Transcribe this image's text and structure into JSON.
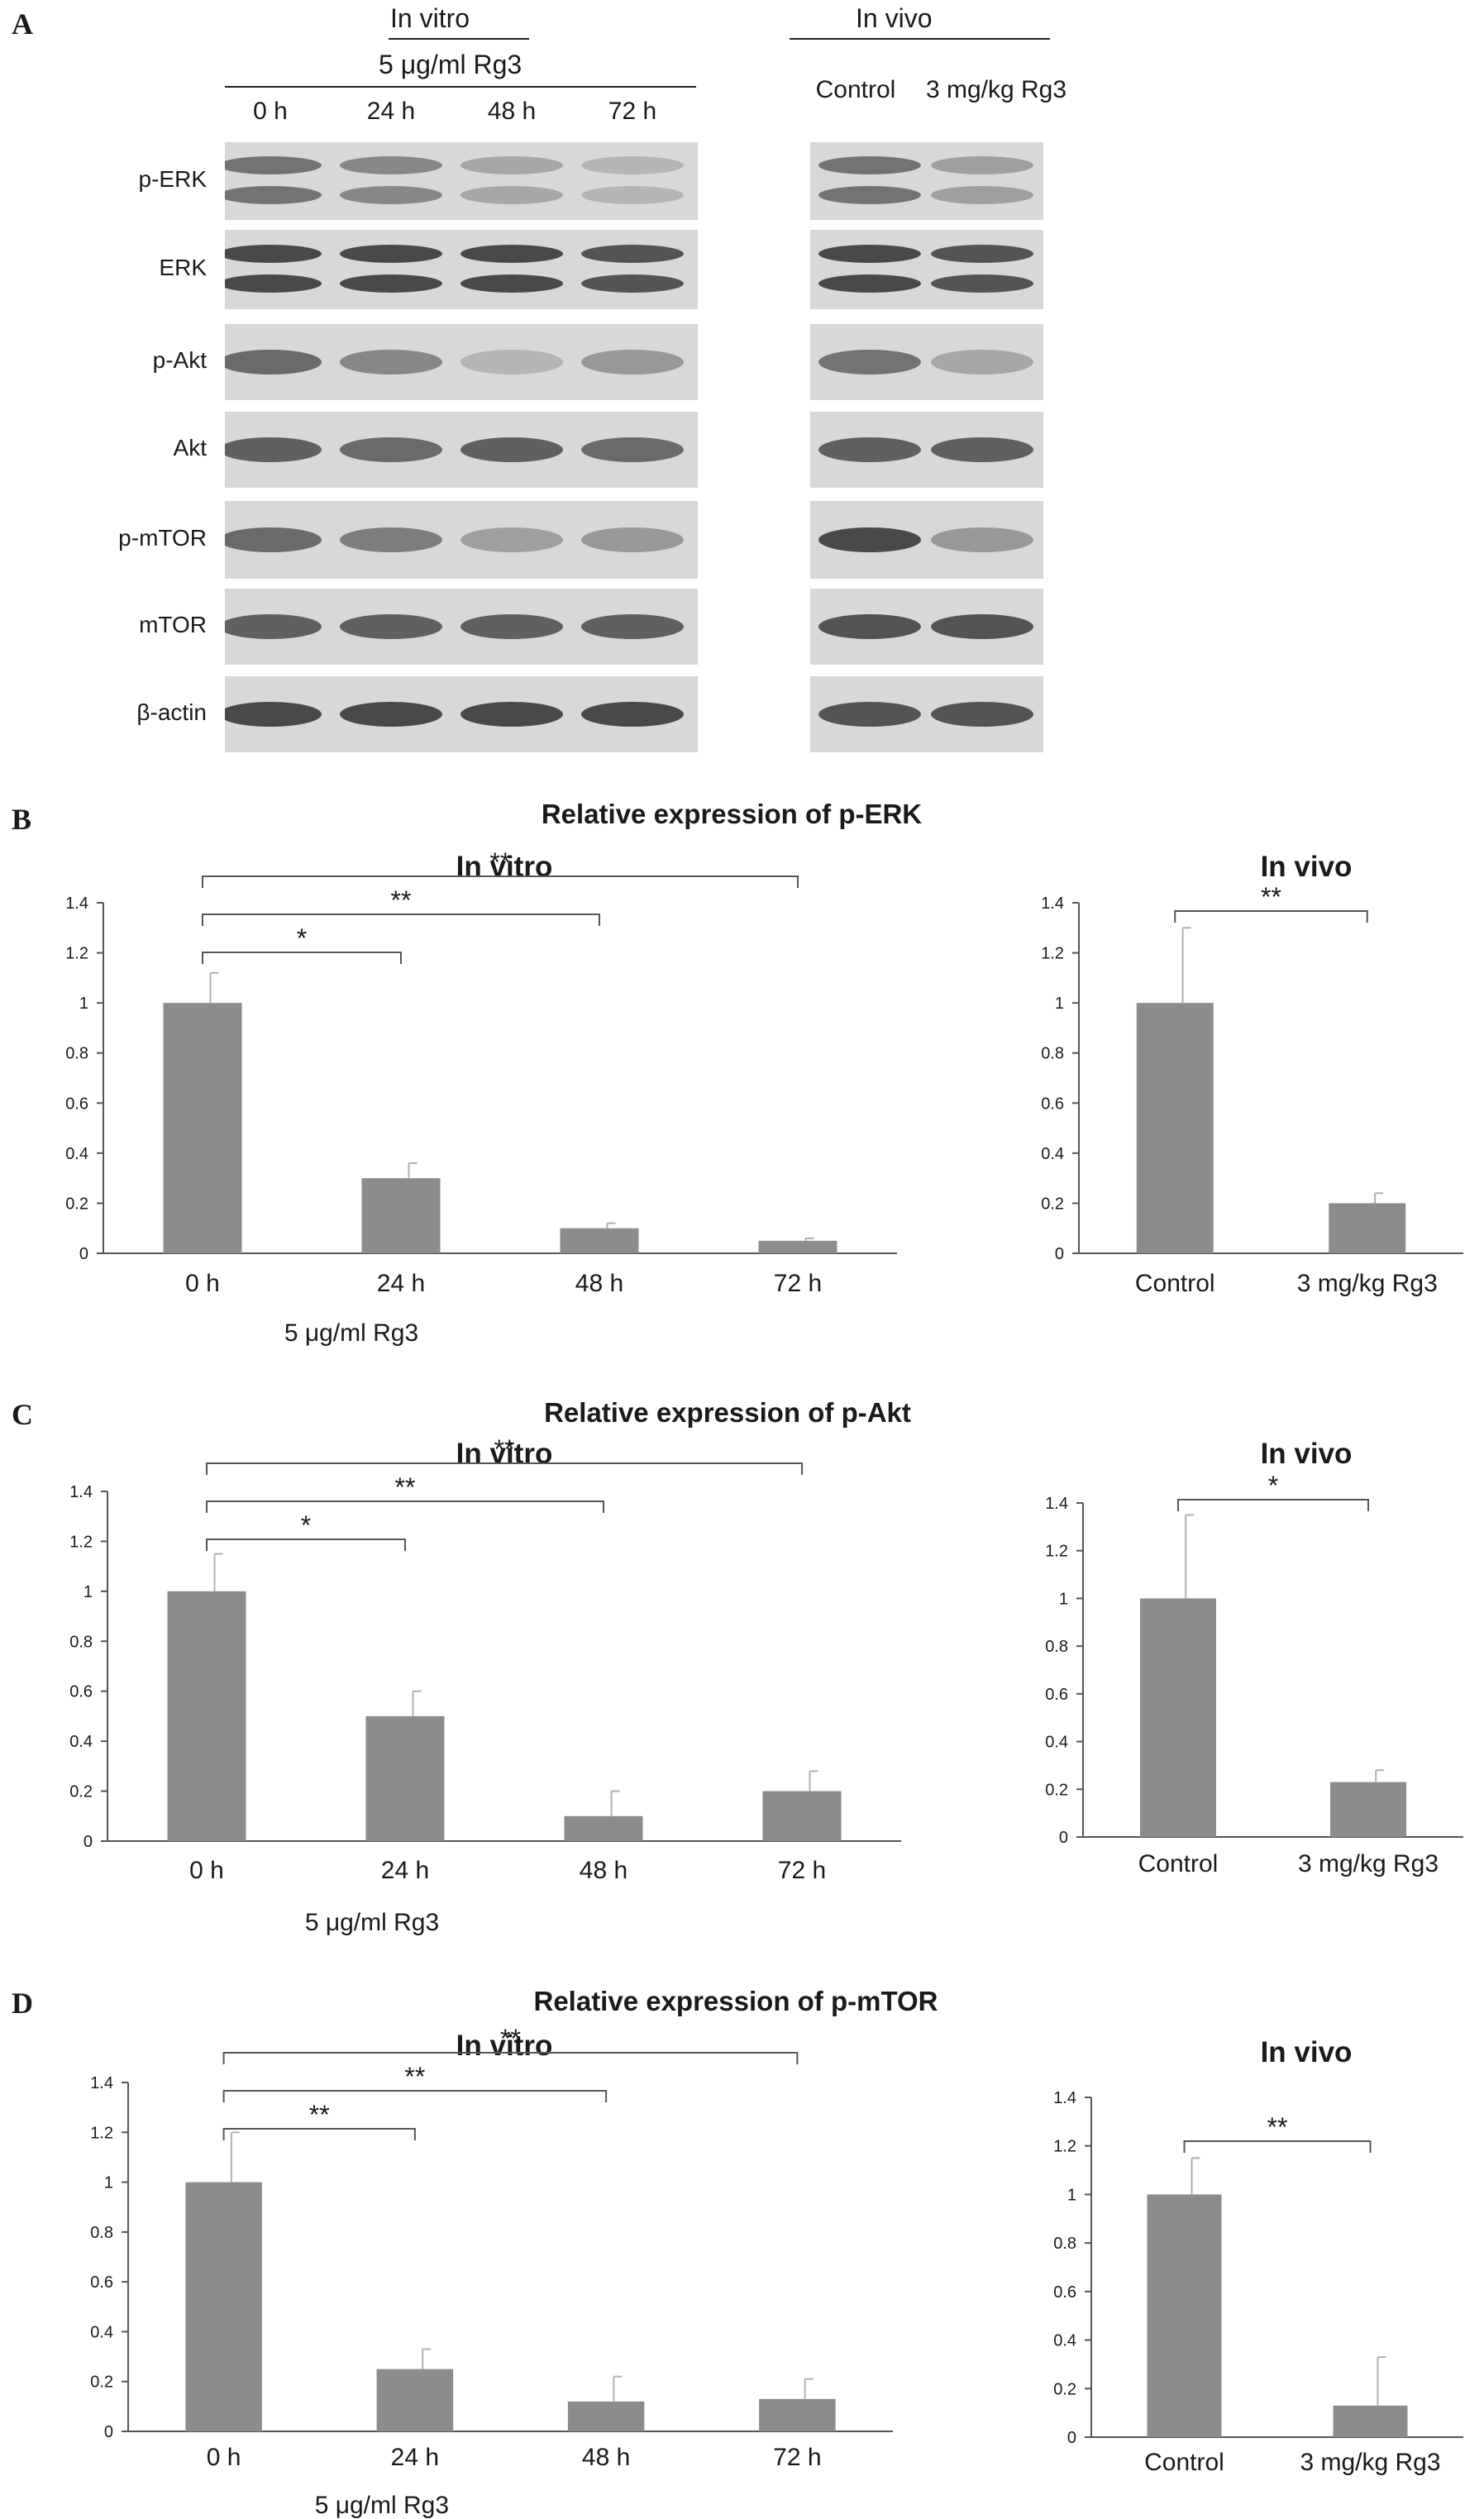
{
  "panel_a": {
    "letter": "A",
    "in_vitro_header": "In vitro",
    "in_vitro_treatment": "5 μg/ml Rg3",
    "in_vitro_lanes": [
      "0 h",
      "24 h",
      "48 h",
      "72 h"
    ],
    "in_vivo_header": "In vivo",
    "in_vivo_lanes": [
      "Control",
      "3 mg/kg Rg3"
    ],
    "rows": [
      "p-ERK",
      "ERK",
      "p-Akt",
      "Akt",
      "p-mTOR",
      "mTOR",
      "β-actin"
    ],
    "band_intensity": {
      "in_vitro": [
        [
          0.75,
          0.65,
          0.45,
          0.35
        ],
        [
          0.95,
          0.95,
          0.95,
          0.9
        ],
        [
          0.8,
          0.65,
          0.35,
          0.55
        ],
        [
          0.85,
          0.8,
          0.85,
          0.8
        ],
        [
          0.8,
          0.7,
          0.5,
          0.55
        ],
        [
          0.85,
          0.85,
          0.85,
          0.85
        ],
        [
          0.95,
          0.95,
          0.95,
          0.95
        ]
      ],
      "in_vivo": [
        [
          0.75,
          0.5
        ],
        [
          0.95,
          0.9
        ],
        [
          0.75,
          0.45
        ],
        [
          0.85,
          0.85
        ],
        [
          0.95,
          0.55
        ],
        [
          0.9,
          0.9
        ],
        [
          0.9,
          0.9
        ]
      ]
    }
  },
  "bar_color": "#8c8c8c",
  "chart_data": [
    {
      "panel": "B",
      "section_title": "Relative expression of p-ERK",
      "title": "In vitro",
      "type": "bar",
      "categories": [
        "0 h",
        "24 h",
        "48 h",
        "72 h"
      ],
      "values": [
        1.0,
        0.3,
        0.1,
        0.05
      ],
      "errors": [
        0.12,
        0.06,
        0.02,
        0.01
      ],
      "xlabel": "5 μg/ml Rg3",
      "ylim": [
        0,
        1.4
      ],
      "yticks": [
        "0",
        "0.2",
        "0.4",
        "0.6",
        "0.8",
        "1",
        "1.2",
        "1.4"
      ],
      "significance": [
        {
          "from": "0 h",
          "to": "24 h",
          "label": "*"
        },
        {
          "from": "0 h",
          "to": "48 h",
          "label": "**"
        },
        {
          "from": "0 h",
          "to": "72 h",
          "label": "**"
        }
      ]
    },
    {
      "panel": "B",
      "title": "In vivo",
      "type": "bar",
      "categories": [
        "Control",
        "3 mg/kg Rg3"
      ],
      "values": [
        1.0,
        0.2
      ],
      "errors": [
        0.3,
        0.04
      ],
      "xlabel": "",
      "ylim": [
        0,
        1.4
      ],
      "yticks": [
        "0",
        "0.2",
        "0.4",
        "0.6",
        "0.8",
        "1",
        "1.2",
        "1.4"
      ],
      "significance": [
        {
          "from": "Control",
          "to": "3 mg/kg Rg3",
          "label": "**"
        }
      ]
    },
    {
      "panel": "C",
      "section_title": "Relative expression of p-Akt",
      "title": "In vitro",
      "type": "bar",
      "categories": [
        "0 h",
        "24 h",
        "48 h",
        "72 h"
      ],
      "values": [
        1.0,
        0.5,
        0.1,
        0.2
      ],
      "errors": [
        0.15,
        0.1,
        0.1,
        0.08
      ],
      "xlabel": "5 μg/ml Rg3",
      "ylim": [
        0,
        1.4
      ],
      "yticks": [
        "0",
        "0.2",
        "0.4",
        "0.6",
        "0.8",
        "1",
        "1.2",
        "1.4"
      ],
      "significance": [
        {
          "from": "0 h",
          "to": "24 h",
          "label": "*"
        },
        {
          "from": "0 h",
          "to": "48 h",
          "label": "**"
        },
        {
          "from": "0 h",
          "to": "72 h",
          "label": "**"
        }
      ]
    },
    {
      "panel": "C",
      "title": "In vivo",
      "type": "bar",
      "categories": [
        "Control",
        "3 mg/kg Rg3"
      ],
      "values": [
        1.0,
        0.23
      ],
      "errors": [
        0.35,
        0.05
      ],
      "xlabel": "",
      "ylim": [
        0,
        1.4
      ],
      "yticks": [
        "0",
        "0.2",
        "0.4",
        "0.6",
        "0.8",
        "1",
        "1.2",
        "1.4"
      ],
      "significance": [
        {
          "from": "Control",
          "to": "3 mg/kg Rg3",
          "label": "*"
        }
      ]
    },
    {
      "panel": "D",
      "section_title": "Relative expression of p-mTOR",
      "title": "In vitro",
      "type": "bar",
      "categories": [
        "0 h",
        "24 h",
        "48 h",
        "72 h"
      ],
      "values": [
        1.0,
        0.25,
        0.12,
        0.13
      ],
      "errors": [
        0.2,
        0.08,
        0.1,
        0.08
      ],
      "xlabel": "5 μg/ml Rg3",
      "ylim": [
        0,
        1.4
      ],
      "yticks": [
        "0",
        "0.2",
        "0.4",
        "0.6",
        "0.8",
        "1",
        "1.2",
        "1.4"
      ],
      "significance": [
        {
          "from": "0 h",
          "to": "24 h",
          "label": "**"
        },
        {
          "from": "0 h",
          "to": "48 h",
          "label": "**"
        },
        {
          "from": "0 h",
          "to": "72 h",
          "label": "**"
        }
      ]
    },
    {
      "panel": "D",
      "title": "In vivo",
      "type": "bar",
      "categories": [
        "Control",
        "3 mg/kg Rg3"
      ],
      "values": [
        1.0,
        0.13
      ],
      "errors": [
        0.15,
        0.2
      ],
      "xlabel": "",
      "ylim": [
        0,
        1.4
      ],
      "yticks": [
        "0",
        "0.2",
        "0.4",
        "0.6",
        "0.8",
        "1",
        "1.2",
        "1.4"
      ],
      "significance": [
        {
          "from": "Control",
          "to": "3 mg/kg Rg3",
          "label": "**"
        }
      ]
    }
  ]
}
